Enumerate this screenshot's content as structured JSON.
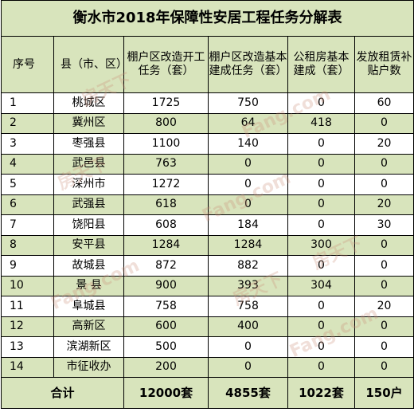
{
  "title": "衡水市2018年保障性安居工程任务分解表",
  "headers": [
    "序号",
    "县（市、区）",
    "棚户区改造开工任务（套）",
    "棚户区改造基本建成任务（套）",
    "公租房基本建成（套）",
    "发放租赁补贴户数"
  ],
  "rows": [
    [
      "1",
      "桃城区",
      "1725",
      "750",
      "0",
      "60"
    ],
    [
      "2",
      "冀州区",
      "800",
      "64",
      "418",
      "0"
    ],
    [
      "3",
      "枣强县",
      "1100",
      "140",
      "0",
      "20"
    ],
    [
      "4",
      "武邑县",
      "763",
      "0",
      "0",
      "0"
    ],
    [
      "5",
      "深州市",
      "1272",
      "0",
      "0",
      "0"
    ],
    [
      "6",
      "武强县",
      "618",
      "0",
      "0",
      "20"
    ],
    [
      "7",
      "饶阳县",
      "608",
      "184",
      "0",
      "30"
    ],
    [
      "8",
      "安平县",
      "1284",
      "1284",
      "300",
      "0"
    ],
    [
      "9",
      "故城县",
      "872",
      "882",
      "0",
      "0"
    ],
    [
      "10",
      "景  县",
      "900",
      "393",
      "304",
      "0"
    ],
    [
      "11",
      "阜城县",
      "758",
      "758",
      "0",
      "20"
    ],
    [
      "12",
      "高新区",
      "600",
      "400",
      "0",
      "0"
    ],
    [
      "13",
      "滨湖新区",
      "500",
      "0",
      "0",
      "0"
    ],
    [
      "14",
      "市征收办",
      "200",
      "0",
      "0",
      "0"
    ]
  ],
  "total": [
    "合计",
    "12000套",
    "4855套",
    "1022套",
    "150户"
  ],
  "watermarks": [
    "房天下",
    "Fang.com",
    "房天下",
    "Fang.com",
    "房天下",
    "Fang.com",
    "房天下",
    "Fang.com"
  ]
}
